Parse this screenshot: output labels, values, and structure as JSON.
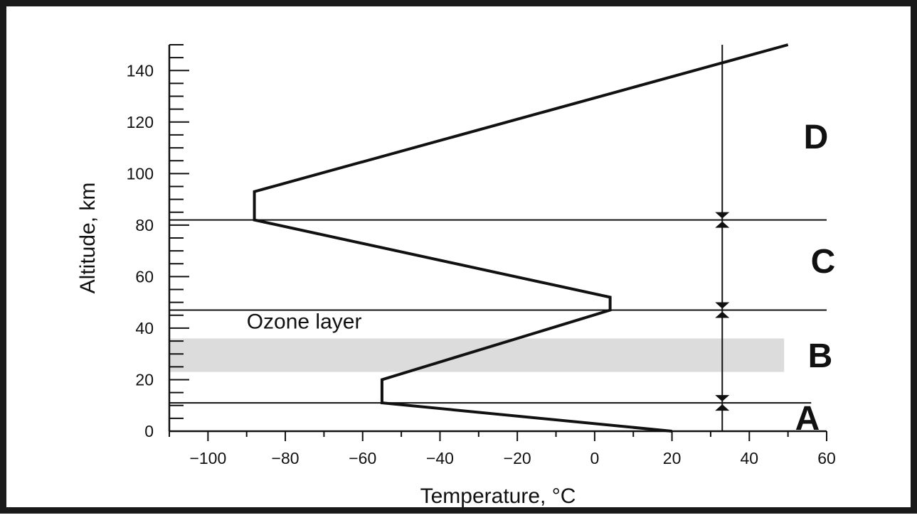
{
  "chart_data": {
    "type": "line",
    "title": "",
    "xlabel": "Temperature, °C",
    "ylabel": "Altitude, km",
    "xlim": [
      -110,
      60
    ],
    "ylim": [
      0,
      150
    ],
    "x_ticks": [
      -100,
      -80,
      -60,
      -40,
      -20,
      0,
      20,
      40,
      60
    ],
    "x_tick_labels": [
      "−100",
      "−80",
      "−60",
      "−40",
      "−20",
      "0",
      "20",
      "40",
      "60"
    ],
    "y_ticks": [
      0,
      20,
      40,
      60,
      80,
      100,
      120,
      140
    ],
    "y_tick_labels": [
      "0",
      "20",
      "40",
      "60",
      "80",
      "100",
      "120",
      "140"
    ],
    "series": [
      {
        "x": [
          20,
          -55,
          -55,
          4,
          4,
          -88,
          -88,
          50
        ],
        "y": [
          0,
          11,
          20,
          47,
          52,
          82,
          93,
          150
        ]
      }
    ],
    "boundaries": [
      11,
      47,
      82
    ],
    "ozone_layer": {
      "label": "Ozone layer",
      "y_range": [
        23,
        36
      ],
      "color": "#dcdcdc"
    },
    "zones": [
      {
        "label": "A",
        "y_range": [
          0,
          11
        ]
      },
      {
        "label": "B",
        "y_range": [
          11,
          47
        ]
      },
      {
        "label": "C",
        "y_range": [
          47,
          82
        ]
      },
      {
        "label": "D",
        "y_range": [
          82,
          150
        ]
      }
    ],
    "zone_marker_x": 33,
    "grid": false,
    "line_color": "#111111"
  }
}
